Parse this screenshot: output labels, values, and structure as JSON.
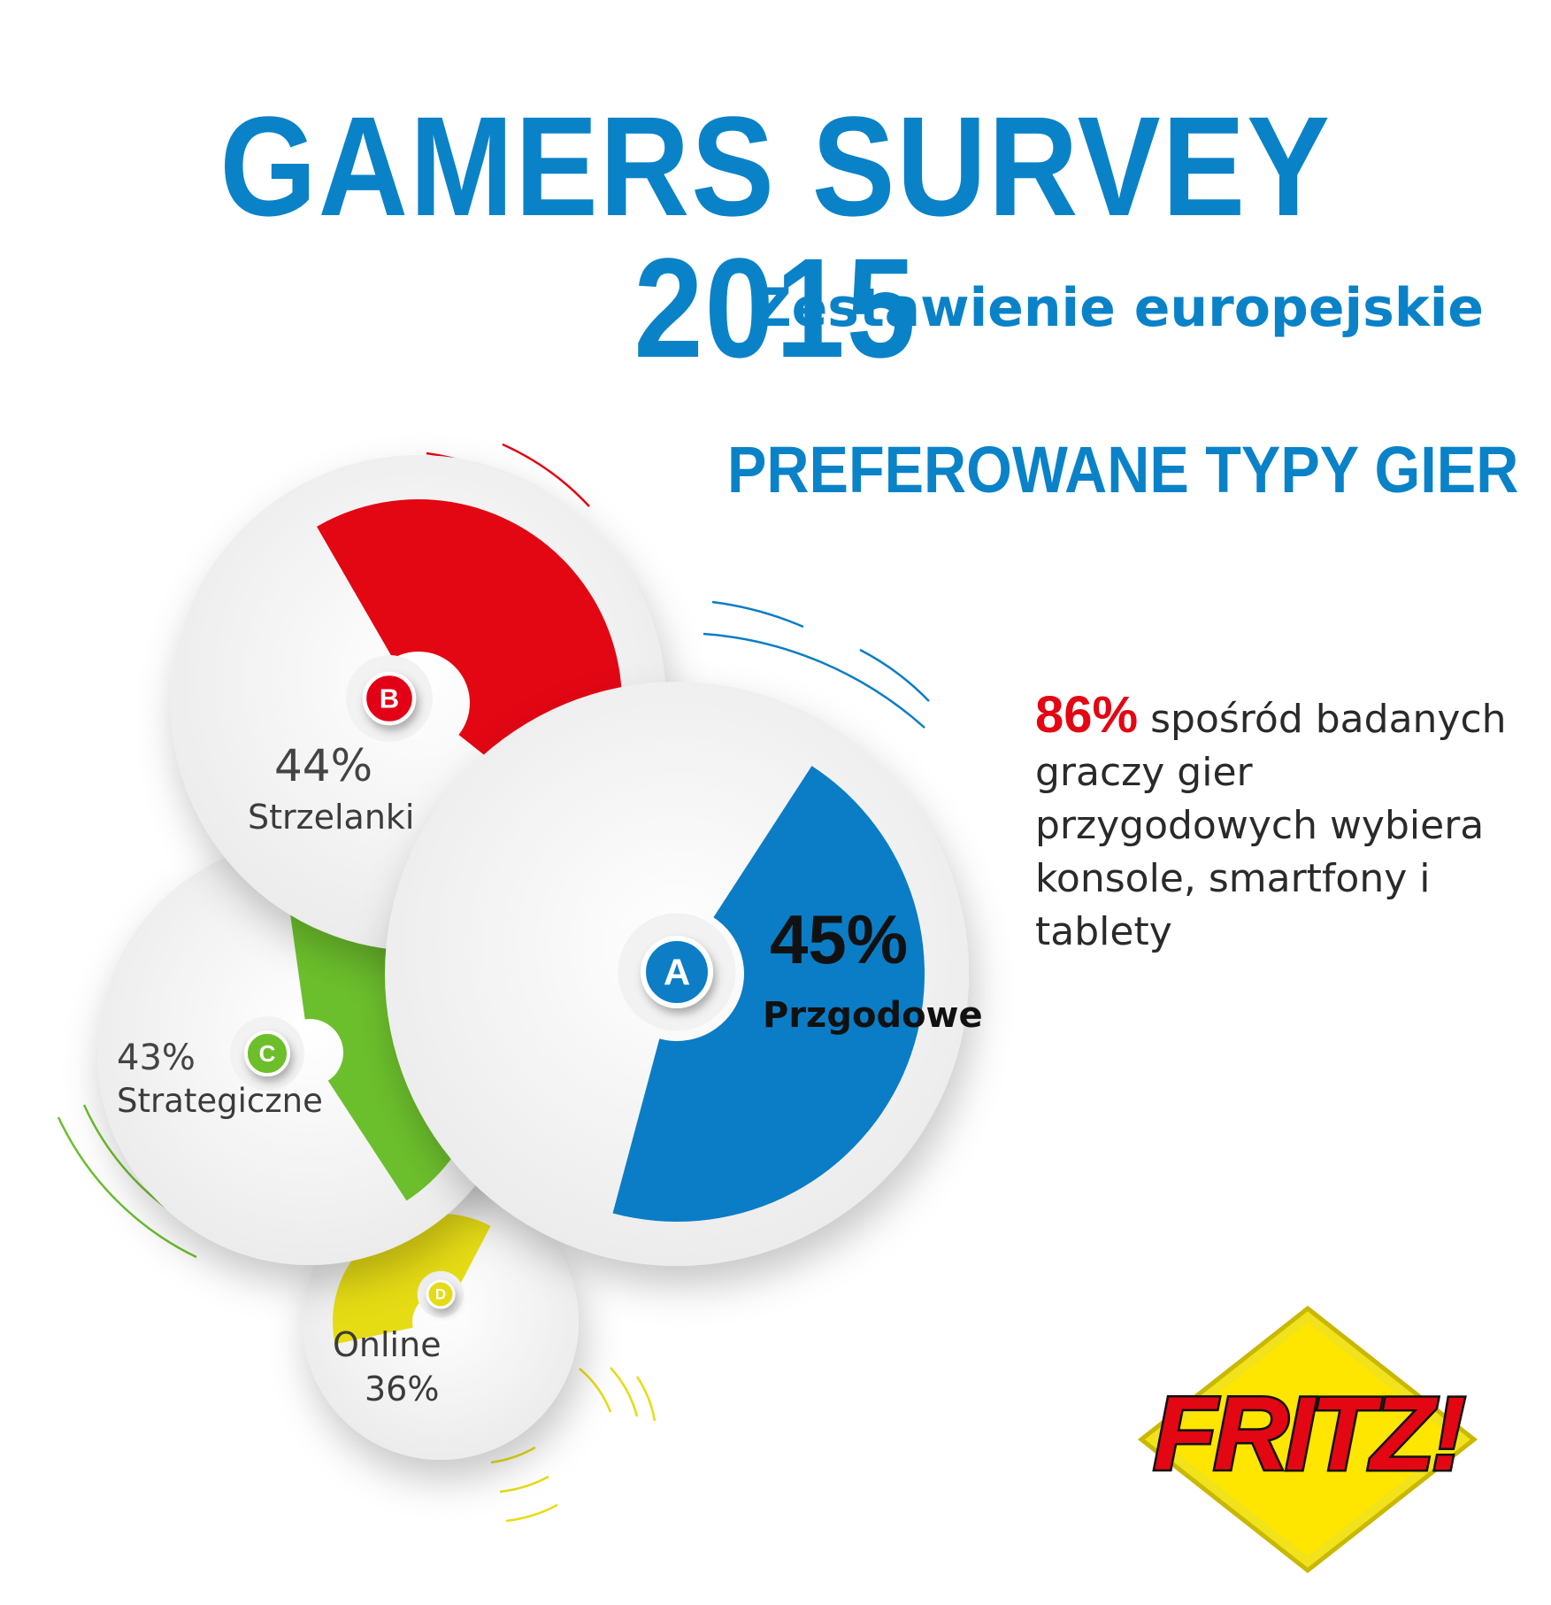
{
  "header": {
    "title": "GAMERS SURVEY 2015",
    "subtitle": "Zestawienie europejskie"
  },
  "section_title": "PREFEROWANE TYPY GIER",
  "note": {
    "highlight": "86%",
    "text": "spośród badanych graczy gier przygodowych wybiera konsole, smartfony i tablety"
  },
  "chart_data": {
    "type": "pie",
    "title": "PREFEROWANE TYPY GIER",
    "items": [
      {
        "letter": "A",
        "label": "Przgodowe",
        "value": 45,
        "value_label": "45%",
        "color": "#0a7dc6"
      },
      {
        "letter": "B",
        "label": "Strzelanki",
        "value": 44,
        "value_label": "44%",
        "color": "#e30613"
      },
      {
        "letter": "C",
        "label": "Strategiczne",
        "value": 43,
        "value_label": "43%",
        "color": "#6cbf2c"
      },
      {
        "letter": "D",
        "label": "Online",
        "value": 36,
        "value_label": "36%",
        "color": "#e6dc14"
      }
    ]
  },
  "logo": {
    "text": "FRITZ!",
    "colors": {
      "red": "#e30613",
      "yellow": "#ffe600",
      "black": "#111111"
    }
  }
}
